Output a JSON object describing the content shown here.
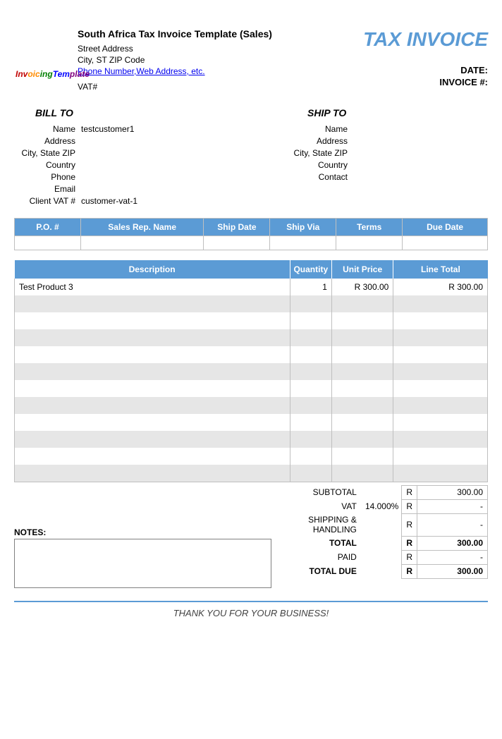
{
  "colors": {
    "accent": "#5b9bd5",
    "border": "#bfbfbf",
    "alt_row": "#e6e6e6",
    "link": "#0000ee"
  },
  "logo_text": "InvoicingTemplate",
  "header": {
    "company_name": "South Africa Tax Invoice Template (Sales)",
    "street": "Street Address",
    "city_line": "City, ST  ZIP Code",
    "contact_link": "Phone Number,Web Address, etc.",
    "vat_label": "VAT#",
    "title": "TAX INVOICE",
    "date_label": "DATE:",
    "invoice_no_label": "INVOICE #:"
  },
  "bill_to": {
    "title": "BILL TO",
    "rows": [
      {
        "label": "Name",
        "value": "testcustomer1"
      },
      {
        "label": "Address",
        "value": ""
      },
      {
        "label": "City, State ZIP",
        "value": ""
      },
      {
        "label": "Country",
        "value": ""
      },
      {
        "label": "Phone",
        "value": ""
      },
      {
        "label": "Email",
        "value": ""
      },
      {
        "label": "Client VAT #",
        "value": "customer-vat-1"
      }
    ]
  },
  "ship_to": {
    "title": "SHIP TO",
    "rows": [
      {
        "label": "Name",
        "value": ""
      },
      {
        "label": "Address",
        "value": ""
      },
      {
        "label": "City, State ZIP",
        "value": ""
      },
      {
        "label": "Country",
        "value": ""
      },
      {
        "label": "Contact",
        "value": ""
      }
    ]
  },
  "meta_table": {
    "headers": [
      "P.O. #",
      "Sales Rep. Name",
      "Ship Date",
      "Ship Via",
      "Terms",
      "Due Date"
    ],
    "row": [
      "",
      "",
      "",
      "",
      "",
      ""
    ],
    "col_widths": [
      "14%",
      "26%",
      "14%",
      "14%",
      "14%",
      "18%"
    ]
  },
  "items_table": {
    "headers": [
      "Description",
      "Quantity",
      "Unit Price",
      "Line Total"
    ],
    "rows": [
      {
        "desc": "Test Product 3",
        "qty": "1",
        "price": "R 300.00",
        "total": "R 300.00"
      },
      {
        "desc": "",
        "qty": "",
        "price": "",
        "total": ""
      },
      {
        "desc": "",
        "qty": "",
        "price": "",
        "total": ""
      },
      {
        "desc": "",
        "qty": "",
        "price": "",
        "total": ""
      },
      {
        "desc": "",
        "qty": "",
        "price": "",
        "total": ""
      },
      {
        "desc": "",
        "qty": "",
        "price": "",
        "total": ""
      },
      {
        "desc": "",
        "qty": "",
        "price": "",
        "total": ""
      },
      {
        "desc": "",
        "qty": "",
        "price": "",
        "total": ""
      },
      {
        "desc": "",
        "qty": "",
        "price": "",
        "total": ""
      },
      {
        "desc": "",
        "qty": "",
        "price": "",
        "total": ""
      },
      {
        "desc": "",
        "qty": "",
        "price": "",
        "total": ""
      },
      {
        "desc": "",
        "qty": "",
        "price": "",
        "total": ""
      }
    ]
  },
  "totals": {
    "currency": "R",
    "lines": [
      {
        "label": "SUBTOTAL",
        "extra": "",
        "value": "300.00",
        "bold": false
      },
      {
        "label": "VAT",
        "extra": "14.000%",
        "value": "-",
        "bold": false
      },
      {
        "label": "SHIPPING & HANDLING",
        "extra": "",
        "value": "-",
        "bold": false
      },
      {
        "label": "TOTAL",
        "extra": "",
        "value": "300.00",
        "bold": true
      },
      {
        "label": "PAID",
        "extra": "",
        "value": "-",
        "bold": false
      },
      {
        "label": "TOTAL DUE",
        "extra": "",
        "value": "300.00",
        "bold": true
      }
    ]
  },
  "notes_label": "NOTES:",
  "footer": "THANK YOU FOR YOUR BUSINESS!"
}
